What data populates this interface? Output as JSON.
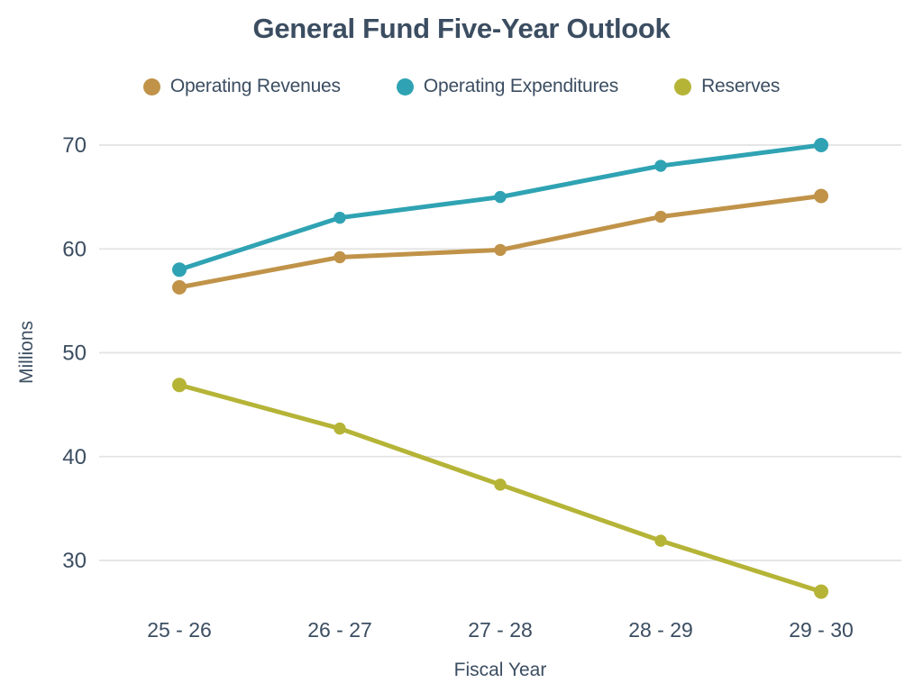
{
  "chart_data": {
    "type": "line",
    "title": "General Fund Five-Year Outlook",
    "xlabel": "Fiscal Year",
    "ylabel": "Millions",
    "categories": [
      "25 - 26",
      "26 - 27",
      "27 - 28",
      "28 - 29",
      "29 - 30"
    ],
    "series": [
      {
        "name": "Operating Revenues",
        "color": "#c09349",
        "values": [
          56.3,
          59.2,
          59.9,
          63.1,
          65.1
        ]
      },
      {
        "name": "Operating Expenditures",
        "color": "#2fa3b3",
        "values": [
          58,
          63,
          65,
          68,
          70
        ]
      },
      {
        "name": "Reserves",
        "color": "#b5b437",
        "values": [
          46.9,
          42.7,
          37.3,
          31.9,
          27.0
        ]
      }
    ],
    "yticks": [
      30,
      40,
      50,
      60,
      70
    ],
    "ylim": [
      26,
      71
    ],
    "grid": "horizontal-only",
    "legend_position": "top",
    "text_color": "#3b4d61",
    "grid_color": "#e3e3e3",
    "background_color": "#ffffff"
  }
}
